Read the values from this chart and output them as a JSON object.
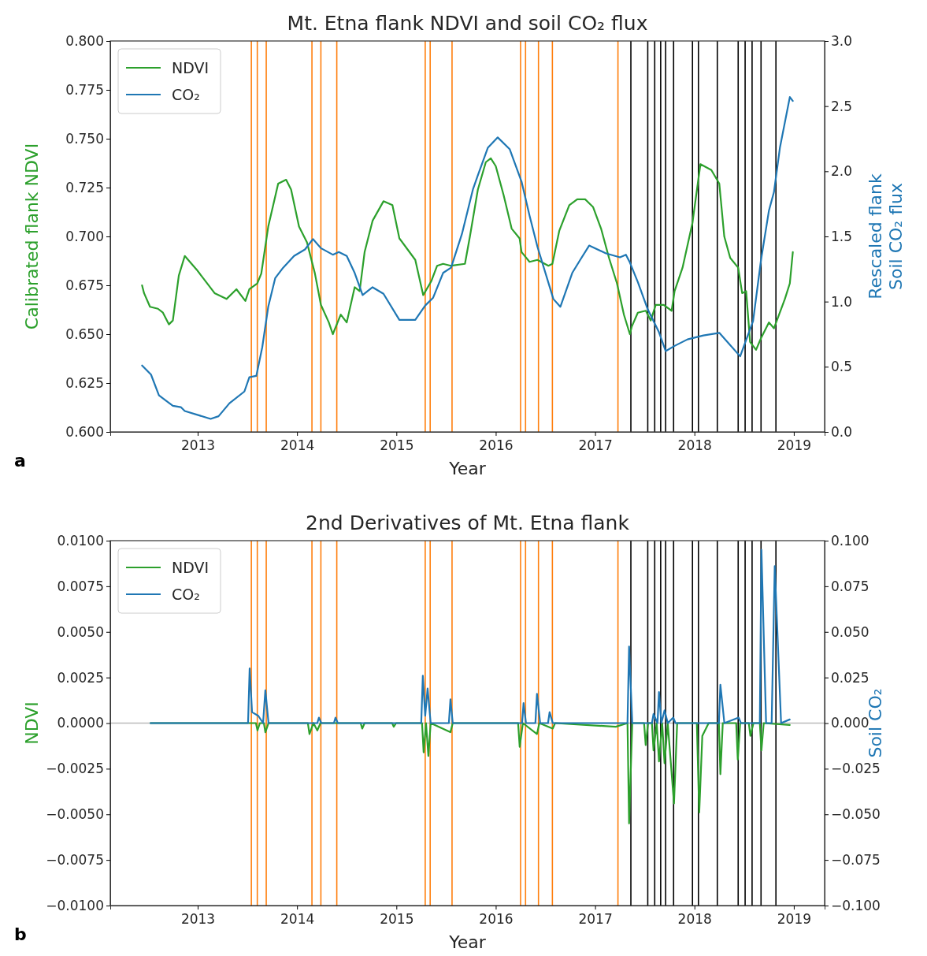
{
  "chart_data": [
    {
      "type": "line",
      "title": "Mt. Etna flank NDVI and soil CO₂ flux",
      "xlabel": "Year",
      "ylabel": "Calibrated flank NDVI",
      "y2label": "Rescaled flank\nSoil CO₂ flux",
      "annotations": [
        "a"
      ],
      "xlim": [
        2012.12,
        2019.31
      ],
      "xticks": [
        2013,
        2014,
        2015,
        2016,
        2017,
        2018,
        2019
      ],
      "ylim": [
        0.6,
        0.8
      ],
      "yticks": [
        {
          "value": 0.6,
          "label": "0.600"
        },
        {
          "value": 0.625,
          "label": "0.625"
        },
        {
          "value": 0.65,
          "label": "0.650"
        },
        {
          "value": 0.675,
          "label": "0.675"
        },
        {
          "value": 0.7,
          "label": "0.700"
        },
        {
          "value": 0.725,
          "label": "0.725"
        },
        {
          "value": 0.75,
          "label": "0.750"
        },
        {
          "value": 0.775,
          "label": "0.775"
        },
        {
          "value": 0.8,
          "label": "0.800"
        }
      ],
      "y2lim": [
        0,
        3
      ],
      "y2ticks": [
        {
          "value": 0,
          "label": "0.0"
        },
        {
          "value": 0.5,
          "label": "0.5"
        },
        {
          "value": 1,
          "label": "1.0"
        },
        {
          "value": 1.5,
          "label": "1.5"
        },
        {
          "value": 2,
          "label": "2.0"
        },
        {
          "value": 2.5,
          "label": "2.5"
        },
        {
          "value": 3,
          "label": "3.0"
        }
      ],
      "legend": "top left",
      "grid": false,
      "series": [
        {
          "name": "NDVI",
          "color": "#2ca02c",
          "x": [
            2012.44,
            2012.46,
            2012.52,
            2012.6,
            2012.65,
            2012.71,
            2012.75,
            2012.81,
            2012.87,
            2012.99,
            2013.17,
            2013.29,
            2013.39,
            2013.48,
            2013.52,
            2013.6,
            2013.64,
            2013.71,
            2013.81,
            2013.89,
            2013.94,
            2014.02,
            2014.1,
            2014.18,
            2014.24,
            2014.32,
            2014.36,
            2014.44,
            2014.5,
            2014.58,
            2014.63,
            2014.68,
            2014.76,
            2014.87,
            2014.96,
            2015.03,
            2015.19,
            2015.27,
            2015.35,
            2015.41,
            2015.47,
            2015.55,
            2015.69,
            2015.74,
            2015.82,
            2015.9,
            2015.95,
            2016.0,
            2016.08,
            2016.16,
            2016.24,
            2016.26,
            2016.34,
            2016.42,
            2016.53,
            2016.57,
            2016.64,
            2016.74,
            2016.82,
            2016.9,
            2016.98,
            2017.06,
            2017.14,
            2017.22,
            2017.29,
            2017.35,
            2017.37,
            2017.43,
            2017.51,
            2017.56,
            2017.61,
            2017.69,
            2017.77,
            2017.8,
            2017.88,
            2017.98,
            2018.06,
            2018.17,
            2018.25,
            2018.3,
            2018.36,
            2018.44,
            2018.48,
            2018.52,
            2018.56,
            2018.62,
            2018.67,
            2018.75,
            2018.8,
            2018.91,
            2018.96,
            2018.99
          ],
          "values": [
            0.675,
            0.671,
            0.664,
            0.663,
            0.661,
            0.655,
            0.657,
            0.68,
            0.69,
            0.683,
            0.671,
            0.668,
            0.673,
            0.667,
            0.673,
            0.676,
            0.681,
            0.705,
            0.727,
            0.729,
            0.724,
            0.705,
            0.697,
            0.681,
            0.665,
            0.656,
            0.65,
            0.66,
            0.656,
            0.674,
            0.672,
            0.692,
            0.708,
            0.718,
            0.716,
            0.699,
            0.688,
            0.67,
            0.677,
            0.685,
            0.686,
            0.685,
            0.686,
            0.7,
            0.724,
            0.738,
            0.74,
            0.736,
            0.721,
            0.704,
            0.699,
            0.692,
            0.687,
            0.688,
            0.685,
            0.686,
            0.703,
            0.716,
            0.719,
            0.719,
            0.715,
            0.704,
            0.689,
            0.676,
            0.66,
            0.65,
            0.654,
            0.661,
            0.662,
            0.657,
            0.665,
            0.665,
            0.662,
            0.672,
            0.684,
            0.707,
            0.737,
            0.734,
            0.727,
            0.7,
            0.689,
            0.684,
            0.671,
            0.672,
            0.646,
            0.642,
            0.648,
            0.656,
            0.653,
            0.668,
            0.676,
            0.692
          ]
        },
        {
          "name": "CO₂",
          "color": "#1f77b4",
          "axis": "y2",
          "x": [
            2012.44,
            2012.53,
            2012.61,
            2012.75,
            2012.83,
            2012.87,
            2013.13,
            2013.21,
            2013.32,
            2013.47,
            2013.52,
            2013.59,
            2013.65,
            2013.71,
            2013.78,
            2013.86,
            2013.97,
            2014.08,
            2014.16,
            2014.24,
            2014.36,
            2014.42,
            2014.5,
            2014.58,
            2014.66,
            2014.76,
            2014.87,
            2015.03,
            2015.19,
            2015.29,
            2015.37,
            2015.47,
            2015.55,
            2015.66,
            2015.77,
            2015.82,
            2015.92,
            2016.02,
            2016.14,
            2016.26,
            2016.34,
            2016.42,
            2016.58,
            2016.65,
            2016.77,
            2016.85,
            2016.94,
            2017.11,
            2017.25,
            2017.31,
            2017.35,
            2017.43,
            2017.53,
            2017.64,
            2017.71,
            2017.8,
            2017.93,
            2018.09,
            2018.25,
            2018.32,
            2018.46,
            2018.59,
            2018.67,
            2018.75,
            2018.8,
            2018.86,
            2018.96,
            2018.99
          ],
          "values": [
            0.51,
            0.44,
            0.28,
            0.2,
            0.19,
            0.16,
            0.1,
            0.12,
            0.22,
            0.31,
            0.42,
            0.43,
            0.65,
            0.96,
            1.18,
            1.26,
            1.35,
            1.4,
            1.48,
            1.41,
            1.36,
            1.38,
            1.35,
            1.22,
            1.05,
            1.11,
            1.06,
            0.86,
            0.86,
            0.97,
            1.03,
            1.22,
            1.26,
            1.52,
            1.86,
            1.97,
            2.18,
            2.26,
            2.17,
            1.92,
            1.66,
            1.42,
            1.02,
            0.96,
            1.22,
            1.32,
            1.43,
            1.37,
            1.34,
            1.36,
            1.3,
            1.15,
            0.94,
            0.77,
            0.62,
            0.66,
            0.71,
            0.74,
            0.76,
            0.7,
            0.58,
            0.85,
            1.32,
            1.7,
            1.84,
            2.18,
            2.57,
            2.54
          ]
        }
      ],
      "ref_lines": [
        {
          "axis": "x",
          "value": 2013.54,
          "color": "#ff7f0e"
        },
        {
          "axis": "x",
          "value": 2013.6,
          "color": "#ff7f0e"
        },
        {
          "axis": "x",
          "value": 2013.69,
          "color": "#ff7f0e"
        },
        {
          "axis": "x",
          "value": 2014.15,
          "color": "#ff7f0e"
        },
        {
          "axis": "x",
          "value": 2014.24,
          "color": "#ff7f0e"
        },
        {
          "axis": "x",
          "value": 2014.4,
          "color": "#ff7f0e"
        },
        {
          "axis": "x",
          "value": 2015.29,
          "color": "#ff7f0e"
        },
        {
          "axis": "x",
          "value": 2015.34,
          "color": "#ff7f0e"
        },
        {
          "axis": "x",
          "value": 2015.56,
          "color": "#ff7f0e"
        },
        {
          "axis": "x",
          "value": 2016.25,
          "color": "#ff7f0e"
        },
        {
          "axis": "x",
          "value": 2016.3,
          "color": "#ff7f0e"
        },
        {
          "axis": "x",
          "value": 2016.43,
          "color": "#ff7f0e"
        },
        {
          "axis": "x",
          "value": 2016.57,
          "color": "#ff7f0e"
        },
        {
          "axis": "x",
          "value": 2017.23,
          "color": "#ff7f0e"
        },
        {
          "axis": "x",
          "value": 2017.36,
          "color": "#000000"
        },
        {
          "axis": "x",
          "value": 2017.53,
          "color": "#000000"
        },
        {
          "axis": "x",
          "value": 2017.6,
          "color": "#000000"
        },
        {
          "axis": "x",
          "value": 2017.66,
          "color": "#000000"
        },
        {
          "axis": "x",
          "value": 2017.71,
          "color": "#000000"
        },
        {
          "axis": "x",
          "value": 2017.79,
          "color": "#000000"
        },
        {
          "axis": "x",
          "value": 2017.98,
          "color": "#000000"
        },
        {
          "axis": "x",
          "value": 2018.04,
          "color": "#000000"
        },
        {
          "axis": "x",
          "value": 2018.23,
          "color": "#000000"
        },
        {
          "axis": "x",
          "value": 2018.44,
          "color": "#000000"
        },
        {
          "axis": "x",
          "value": 2018.51,
          "color": "#000000"
        },
        {
          "axis": "x",
          "value": 2018.58,
          "color": "#000000"
        },
        {
          "axis": "x",
          "value": 2018.67,
          "color": "#000000"
        },
        {
          "axis": "x",
          "value": 2018.82,
          "color": "#000000"
        }
      ]
    },
    {
      "type": "line",
      "title": "2nd Derivatives of Mt. Etna flank",
      "xlabel": "Year",
      "ylabel": "NDVI",
      "y2label": "Soil CO₂",
      "annotations": [
        "b"
      ],
      "xlim": [
        2012.12,
        2019.31
      ],
      "xticks": [
        2013,
        2014,
        2015,
        2016,
        2017,
        2018,
        2019
      ],
      "ylim": [
        -0.01,
        0.01
      ],
      "yticks": [
        {
          "value": -0.01,
          "label": "−0.0100"
        },
        {
          "value": -0.0075,
          "label": "−0.0075"
        },
        {
          "value": -0.005,
          "label": "−0.0050"
        },
        {
          "value": -0.0025,
          "label": "−0.0025"
        },
        {
          "value": 0,
          "label": "0.0000"
        },
        {
          "value": 0.0025,
          "label": "0.0025"
        },
        {
          "value": 0.005,
          "label": "0.0050"
        },
        {
          "value": 0.0075,
          "label": "0.0075"
        },
        {
          "value": 0.01,
          "label": "0.0100"
        }
      ],
      "y2lim": [
        -0.1,
        0.1
      ],
      "y2ticks": [
        {
          "value": -0.1,
          "label": "−0.100"
        },
        {
          "value": -0.075,
          "label": "−0.075"
        },
        {
          "value": -0.05,
          "label": "−0.050"
        },
        {
          "value": -0.025,
          "label": "−0.025"
        },
        {
          "value": 0,
          "label": "0.000"
        },
        {
          "value": 0.025,
          "label": "0.025"
        },
        {
          "value": 0.05,
          "label": "0.050"
        },
        {
          "value": 0.075,
          "label": "0.075"
        },
        {
          "value": 0.1,
          "label": "0.100"
        }
      ],
      "legend": "top left",
      "grid": false,
      "series": [
        {
          "name": "NDVI",
          "color": "#2ca02c",
          "x": [
            2012.525,
            2013.586,
            2013.602,
            2013.626,
            2013.666,
            2013.681,
            2013.713,
            2014.109,
            2014.125,
            2014.165,
            2014.204,
            2014.236,
            2014.64,
            2014.656,
            2014.68,
            2014.957,
            2014.973,
            2014.997,
            2015.258,
            2015.274,
            2015.298,
            2015.322,
            2015.345,
            2015.544,
            2015.567,
            2016.225,
            2016.241,
            2016.273,
            2016.415,
            2016.439,
            2016.574,
            2016.597,
            2017.208,
            2017.326,
            2017.342,
            2017.374,
            2017.493,
            2017.509,
            2017.533,
            2017.572,
            2017.588,
            2017.62,
            2017.643,
            2017.675,
            2017.699,
            2017.731,
            2017.794,
            2017.826,
            2018.024,
            2018.048,
            2018.079,
            2018.143,
            2018.246,
            2018.261,
            2018.285,
            2018.42,
            2018.436,
            2018.46,
            2018.547,
            2018.563,
            2018.594,
            2018.658,
            2018.674,
            2018.697,
            2018.959
          ],
          "values": [
            0,
            0,
            -0.0004,
            0,
            0,
            -0.0005,
            0,
            0,
            -0.0006,
            0,
            -0.0004,
            0,
            0,
            -0.0003,
            0,
            0,
            -0.0002,
            0,
            0,
            -0.0016,
            0,
            -0.0018,
            0,
            -0.0005,
            0,
            0,
            -0.0013,
            0,
            -0.0006,
            0,
            -0.0003,
            0,
            -0.0002,
            0,
            -0.0055,
            0,
            0,
            -0.0012,
            0,
            0,
            -0.0015,
            0,
            -0.0021,
            0,
            -0.0022,
            0,
            -0.0044,
            0,
            0,
            -0.0049,
            -0.0007,
            0,
            0,
            -0.0028,
            0,
            0,
            -0.002,
            0,
            0,
            -0.0007,
            0,
            0,
            -0.0015,
            0,
            -0.0001
          ]
        },
        {
          "name": "CO₂",
          "color": "#1f77b4",
          "axis": "y2",
          "x": [
            2012.525,
            2013.507,
            2013.523,
            2013.547,
            2013.61,
            2013.658,
            2013.681,
            2013.713,
            2014.204,
            2014.22,
            2014.244,
            2014.371,
            2014.387,
            2014.41,
            2015.25,
            2015.266,
            2015.29,
            2015.314,
            2015.345,
            2015.528,
            2015.544,
            2015.567,
            2016.265,
            2016.28,
            2016.304,
            2016.399,
            2016.415,
            2016.447,
            2016.526,
            2016.542,
            2016.574,
            2017.326,
            2017.342,
            2017.374,
            2017.572,
            2017.588,
            2017.628,
            2017.643,
            2017.667,
            2017.699,
            2017.731,
            2017.786,
            2017.81,
            2018.246,
            2018.261,
            2018.301,
            2018.444,
            2018.468,
            2018.658,
            2018.674,
            2018.721,
            2018.777,
            2018.808,
            2018.872,
            2018.959
          ],
          "values": [
            0,
            0,
            0.03,
            0.006,
            0.004,
            0,
            0.018,
            0,
            0,
            0.003,
            0,
            0,
            0.003,
            0,
            0,
            0.026,
            0.004,
            0.019,
            0,
            0,
            0.013,
            0,
            0,
            0.011,
            0,
            0,
            0.016,
            0,
            0,
            0.006,
            0,
            0,
            0.042,
            0,
            0,
            0.005,
            0,
            0.017,
            0,
            0.007,
            0,
            0.003,
            0,
            0,
            0.021,
            0,
            0.003,
            0,
            0,
            0.095,
            0,
            0,
            0.086,
            0,
            0.002
          ]
        }
      ],
      "ref_lines": [
        {
          "axis": "y",
          "value": 0,
          "color": "#bbbbbb"
        },
        {
          "axis": "x",
          "value": 2013.54,
          "color": "#ff7f0e"
        },
        {
          "axis": "x",
          "value": 2013.6,
          "color": "#ff7f0e"
        },
        {
          "axis": "x",
          "value": 2013.69,
          "color": "#ff7f0e"
        },
        {
          "axis": "x",
          "value": 2014.15,
          "color": "#ff7f0e"
        },
        {
          "axis": "x",
          "value": 2014.24,
          "color": "#ff7f0e"
        },
        {
          "axis": "x",
          "value": 2014.4,
          "color": "#ff7f0e"
        },
        {
          "axis": "x",
          "value": 2015.29,
          "color": "#ff7f0e"
        },
        {
          "axis": "x",
          "value": 2015.34,
          "color": "#ff7f0e"
        },
        {
          "axis": "x",
          "value": 2015.56,
          "color": "#ff7f0e"
        },
        {
          "axis": "x",
          "value": 2016.25,
          "color": "#ff7f0e"
        },
        {
          "axis": "x",
          "value": 2016.3,
          "color": "#ff7f0e"
        },
        {
          "axis": "x",
          "value": 2016.43,
          "color": "#ff7f0e"
        },
        {
          "axis": "x",
          "value": 2016.57,
          "color": "#ff7f0e"
        },
        {
          "axis": "x",
          "value": 2017.23,
          "color": "#ff7f0e"
        },
        {
          "axis": "x",
          "value": 2017.36,
          "color": "#000000"
        },
        {
          "axis": "x",
          "value": 2017.53,
          "color": "#000000"
        },
        {
          "axis": "x",
          "value": 2017.6,
          "color": "#000000"
        },
        {
          "axis": "x",
          "value": 2017.66,
          "color": "#000000"
        },
        {
          "axis": "x",
          "value": 2017.71,
          "color": "#000000"
        },
        {
          "axis": "x",
          "value": 2017.79,
          "color": "#000000"
        },
        {
          "axis": "x",
          "value": 2017.98,
          "color": "#000000"
        },
        {
          "axis": "x",
          "value": 2018.04,
          "color": "#000000"
        },
        {
          "axis": "x",
          "value": 2018.23,
          "color": "#000000"
        },
        {
          "axis": "x",
          "value": 2018.44,
          "color": "#000000"
        },
        {
          "axis": "x",
          "value": 2018.51,
          "color": "#000000"
        },
        {
          "axis": "x",
          "value": 2018.58,
          "color": "#000000"
        },
        {
          "axis": "x",
          "value": 2018.67,
          "color": "#000000"
        },
        {
          "axis": "x",
          "value": 2018.82,
          "color": "#000000"
        }
      ]
    }
  ]
}
